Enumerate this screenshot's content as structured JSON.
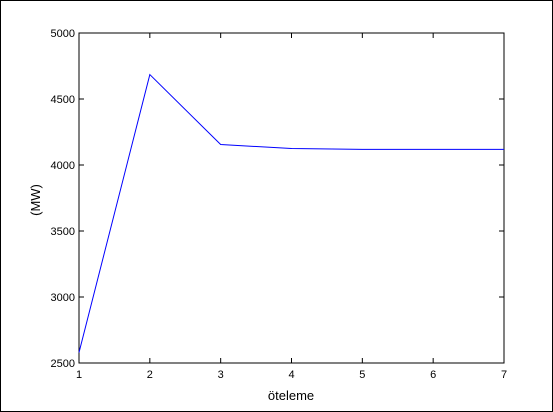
{
  "chart_data": {
    "type": "line",
    "title": "",
    "xlabel": "öteleme",
    "ylabel": "(MW)",
    "xlim": [
      1,
      7
    ],
    "ylim": [
      2500,
      5000
    ],
    "x_ticks": [
      "1",
      "2",
      "3",
      "4",
      "5",
      "6",
      "7"
    ],
    "y_ticks": [
      "2500",
      "3000",
      "3500",
      "4000",
      "4500",
      "5000"
    ],
    "grid": false,
    "legend": "none",
    "series": [
      {
        "x": [
          1,
          2,
          3,
          4,
          5,
          6,
          7
        ],
        "values": [
          2580,
          4685,
          4155,
          4125,
          4118,
          4118,
          4118
        ],
        "color": "#0000ff"
      }
    ]
  }
}
